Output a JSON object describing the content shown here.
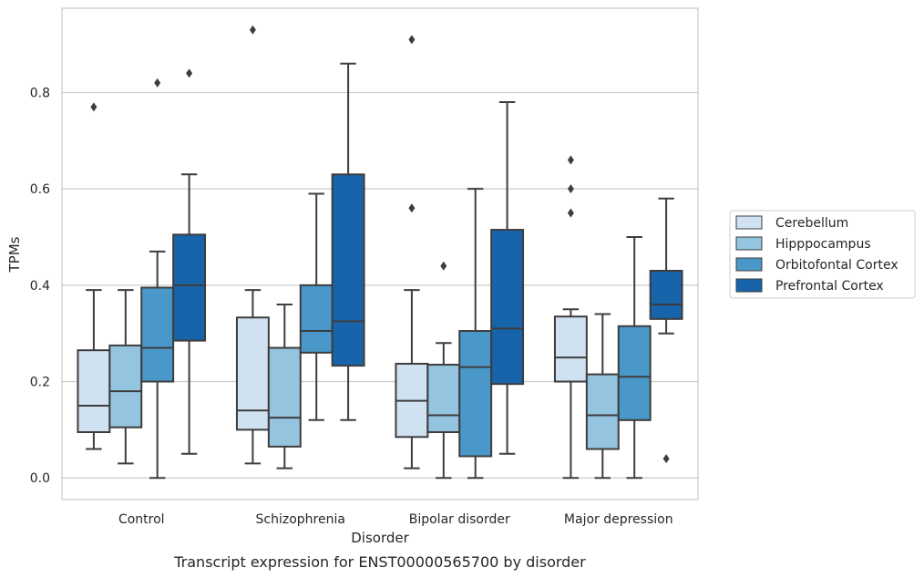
{
  "chart_data": {
    "type": "box",
    "caption": "Transcript expression for ENST00000565700 by disorder",
    "xlabel": "Disorder",
    "ylabel": "TPMs",
    "ylim": [
      -0.045,
      0.975
    ],
    "yticks": [
      0.0,
      0.2,
      0.4,
      0.6,
      0.8
    ],
    "ytick_labels": [
      "0.0",
      "0.2",
      "0.4",
      "0.6",
      "0.8"
    ],
    "grid": "horizontal",
    "legend_position": "right",
    "categories": [
      "Control",
      "Schizophrenia",
      "Bipolar disorder",
      "Major depression"
    ],
    "series": [
      {
        "name": "Cerebellum",
        "color": "#d0e1f2",
        "boxes": [
          {
            "whislo": 0.06,
            "q1": 0.095,
            "med": 0.15,
            "q3": 0.265,
            "whishi": 0.39,
            "fliers": [
              0.77
            ]
          },
          {
            "whislo": 0.03,
            "q1": 0.1,
            "med": 0.14,
            "q3": 0.333,
            "whishi": 0.39,
            "fliers": [
              0.93
            ]
          },
          {
            "whislo": 0.02,
            "q1": 0.085,
            "med": 0.16,
            "q3": 0.237,
            "whishi": 0.39,
            "fliers": [
              0.56,
              0.91
            ]
          },
          {
            "whislo": 0.0,
            "q1": 0.2,
            "med": 0.25,
            "q3": 0.335,
            "whishi": 0.35,
            "fliers": [
              0.55,
              0.6,
              0.66
            ]
          }
        ]
      },
      {
        "name": "Hipppocampus",
        "color": "#94c4df",
        "boxes": [
          {
            "whislo": 0.03,
            "q1": 0.105,
            "med": 0.18,
            "q3": 0.275,
            "whishi": 0.39,
            "fliers": []
          },
          {
            "whislo": 0.02,
            "q1": 0.065,
            "med": 0.125,
            "q3": 0.27,
            "whishi": 0.36,
            "fliers": []
          },
          {
            "whislo": 0.0,
            "q1": 0.095,
            "med": 0.13,
            "q3": 0.235,
            "whishi": 0.28,
            "fliers": [
              0.44
            ]
          },
          {
            "whislo": 0.0,
            "q1": 0.06,
            "med": 0.13,
            "q3": 0.215,
            "whishi": 0.34,
            "fliers": []
          }
        ]
      },
      {
        "name": "Orbitofontal Cortex",
        "color": "#4a98c9",
        "boxes": [
          {
            "whislo": 0.0,
            "q1": 0.2,
            "med": 0.27,
            "q3": 0.395,
            "whishi": 0.47,
            "fliers": [
              0.82
            ]
          },
          {
            "whislo": 0.12,
            "q1": 0.26,
            "med": 0.305,
            "q3": 0.4,
            "whishi": 0.59,
            "fliers": []
          },
          {
            "whislo": 0.0,
            "q1": 0.045,
            "med": 0.23,
            "q3": 0.305,
            "whishi": 0.6,
            "fliers": []
          },
          {
            "whislo": 0.0,
            "q1": 0.12,
            "med": 0.21,
            "q3": 0.315,
            "whishi": 0.5,
            "fliers": []
          }
        ]
      },
      {
        "name": "Prefrontal Cortex",
        "color": "#1764ab",
        "boxes": [
          {
            "whislo": 0.05,
            "q1": 0.285,
            "med": 0.4,
            "q3": 0.505,
            "whishi": 0.63,
            "fliers": [
              0.84
            ]
          },
          {
            "whislo": 0.12,
            "q1": 0.233,
            "med": 0.325,
            "q3": 0.63,
            "whishi": 0.86,
            "fliers": []
          },
          {
            "whislo": 0.05,
            "q1": 0.195,
            "med": 0.31,
            "q3": 0.515,
            "whishi": 0.78,
            "fliers": []
          },
          {
            "whislo": 0.3,
            "q1": 0.33,
            "med": 0.36,
            "q3": 0.43,
            "whishi": 0.58,
            "fliers": [
              0.04
            ]
          }
        ]
      }
    ]
  }
}
